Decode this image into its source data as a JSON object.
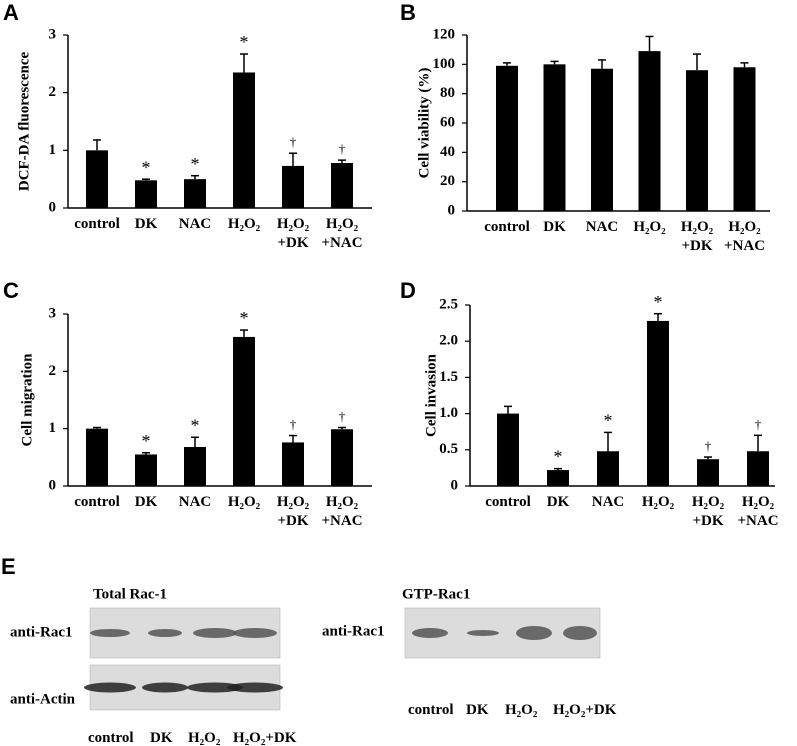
{
  "chart_data": [
    {
      "type": "bar",
      "label": "A",
      "y_label": "DCF-DA fluorescence",
      "color": "#000000",
      "categories": [
        "control",
        "DK",
        "NAC",
        "H₂O₂",
        "H₂O₂ +DK",
        "H₂O₂ +NAC"
      ],
      "values": [
        1.0,
        0.48,
        0.5,
        2.35,
        0.73,
        0.78
      ],
      "errors": [
        0.18,
        0.02,
        0.06,
        0.32,
        0.22,
        0.05
      ],
      "markers": [
        null,
        "*",
        "*",
        "*",
        "†",
        "†"
      ],
      "ylim": [
        0,
        3
      ],
      "yticks": [
        0,
        1,
        2,
        3
      ]
    },
    {
      "type": "bar",
      "label": "B",
      "y_label": "Cell viability (%)",
      "color": "#000000",
      "categories": [
        "control",
        "DK",
        "NAC",
        "H₂O₂",
        "H₂O₂ +DK",
        "H₂O₂ +NAC"
      ],
      "values": [
        99,
        100,
        97,
        109,
        96,
        98
      ],
      "errors": [
        2,
        2,
        6,
        10,
        11,
        3
      ],
      "ylim": [
        0,
        120
      ],
      "yticks": [
        0,
        20,
        40,
        60,
        80,
        100,
        120
      ]
    },
    {
      "type": "bar",
      "label": "C",
      "y_label": "Cell migration",
      "color": "#000000",
      "categories": [
        "control",
        "DK",
        "NAC",
        "H₂O₂",
        "H₂O₂ +DK",
        "H₂O₂ +NAC"
      ],
      "values": [
        1.0,
        0.55,
        0.68,
        2.6,
        0.76,
        0.99
      ],
      "errors": [
        0.02,
        0.03,
        0.17,
        0.12,
        0.12,
        0.03
      ],
      "markers": [
        null,
        "*",
        "*",
        "*",
        "†",
        "†"
      ],
      "ylim": [
        0,
        3
      ],
      "yticks": [
        0,
        1,
        2,
        3
      ]
    },
    {
      "type": "bar",
      "label": "D",
      "y_label": "Cell invasion",
      "color": "#000000",
      "categories": [
        "control",
        "DK",
        "NAC",
        "H₂O₂",
        "H₂O₂ +DK",
        "H₂O₂ +NAC"
      ],
      "values": [
        1.0,
        0.22,
        0.48,
        2.28,
        0.37,
        0.48
      ],
      "errors": [
        0.1,
        0.02,
        0.26,
        0.1,
        0.03,
        0.22
      ],
      "markers": [
        null,
        "*",
        "*",
        "*",
        "†",
        "†"
      ],
      "ylim": [
        0,
        2.5
      ],
      "yticks": [
        0,
        0.5,
        {
          "value": 1,
          "label": "1.0"
        },
        1.5,
        {
          "value": 2,
          "label": "2.0"
        },
        2.5
      ]
    }
  ],
  "blots": {
    "label": "E",
    "panels": [
      {
        "title": "Total Rac-1",
        "rows": [
          "anti-Rac1",
          "anti-Actin"
        ],
        "lanes": [
          "control",
          "DK",
          "H₂O₂",
          "H₂O₂+DK"
        ]
      },
      {
        "title": "GTP-Rac1",
        "rows": [
          "anti-Rac1"
        ],
        "lanes": [
          "control",
          "DK",
          "H₂O₂",
          "H₂O₂+DK"
        ]
      }
    ]
  }
}
